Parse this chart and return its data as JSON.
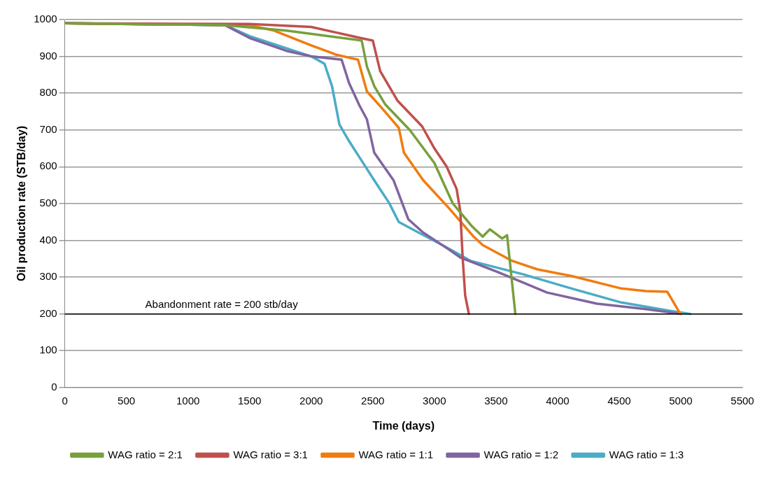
{
  "chart_data": {
    "type": "line",
    "xlabel": "Time (days)",
    "ylabel": "Oil production rate (STB/day)",
    "xlim": [
      0,
      5500
    ],
    "xticks": [
      0,
      500,
      1000,
      1500,
      2000,
      2500,
      3000,
      3500,
      4000,
      4500,
      5000,
      5500
    ],
    "ylim": [
      0,
      1000
    ],
    "yticks": [
      0,
      100,
      200,
      300,
      400,
      500,
      600,
      700,
      800,
      900,
      1000
    ],
    "grid": "y",
    "legend": "bottom",
    "marker": "none",
    "ref_lines": [
      {
        "axis": "y",
        "value": 200,
        "label": "Abandonment rate = 200 stb/day",
        "color": "#000000"
      }
    ],
    "series": [
      {
        "name": "WAG ratio = 2:1",
        "color": "#77a03c",
        "x": [
          0,
          1300,
          1800,
          2410,
          2452,
          2512,
          2600,
          2800,
          3000,
          3150,
          3300,
          3392,
          3450,
          3550,
          3590,
          3657
        ],
        "values": [
          990,
          985,
          970,
          943,
          873,
          819,
          770,
          700,
          610,
          500,
          440,
          410,
          430,
          405,
          414,
          200
        ]
      },
      {
        "name": "WAG ratio = 3:1",
        "color": "#c0504d",
        "x": [
          0,
          1500,
          2000,
          2200,
          2400,
          2500,
          2560,
          2700,
          2900,
          3000,
          3100,
          3180,
          3210,
          3230,
          3250,
          3280
        ],
        "values": [
          990,
          988,
          980,
          965,
          950,
          943,
          860,
          780,
          710,
          650,
          600,
          540,
          480,
          350,
          250,
          200
        ]
      },
      {
        "name": "WAG ratio = 1:1",
        "color": "#f07c10",
        "x": [
          0,
          1500,
          1700,
          2000,
          2200,
          2380,
          2452,
          2572,
          2711,
          2753,
          2910,
          3114,
          3313,
          3392,
          3633,
          3837,
          4114,
          4518,
          4717,
          4891,
          4982,
          5000
        ],
        "values": [
          990,
          985,
          970,
          930,
          905,
          891,
          805,
          760,
          706,
          638,
          563,
          489,
          412,
          387,
          344,
          321,
          303,
          269,
          262,
          260,
          208,
          200
        ]
      },
      {
        "name": "WAG ratio = 1:2",
        "color": "#8064a2",
        "x": [
          0,
          1300,
          1500,
          1800,
          2000,
          2247,
          2307,
          2391,
          2452,
          2512,
          2669,
          2789,
          2910,
          3114,
          3211,
          3512,
          3915,
          4319,
          4717,
          5000
        ],
        "values": [
          990,
          985,
          950,
          915,
          900,
          891,
          828,
          767,
          729,
          638,
          563,
          457,
          421,
          376,
          353,
          314,
          258,
          228,
          213,
          200
        ]
      },
      {
        "name": "WAG ratio = 1:3",
        "color": "#4bacc6",
        "x": [
          0,
          1300,
          1500,
          2000,
          2108,
          2169,
          2229,
          2307,
          2512,
          2632,
          2711,
          2873,
          3054,
          3211,
          3295,
          3717,
          4114,
          4518,
          4921,
          5078
        ],
        "values": [
          990,
          985,
          955,
          900,
          880,
          819,
          715,
          670,
          563,
          502,
          450,
          421,
          389,
          360,
          344,
          308,
          269,
          231,
          208,
          200
        ]
      }
    ]
  }
}
